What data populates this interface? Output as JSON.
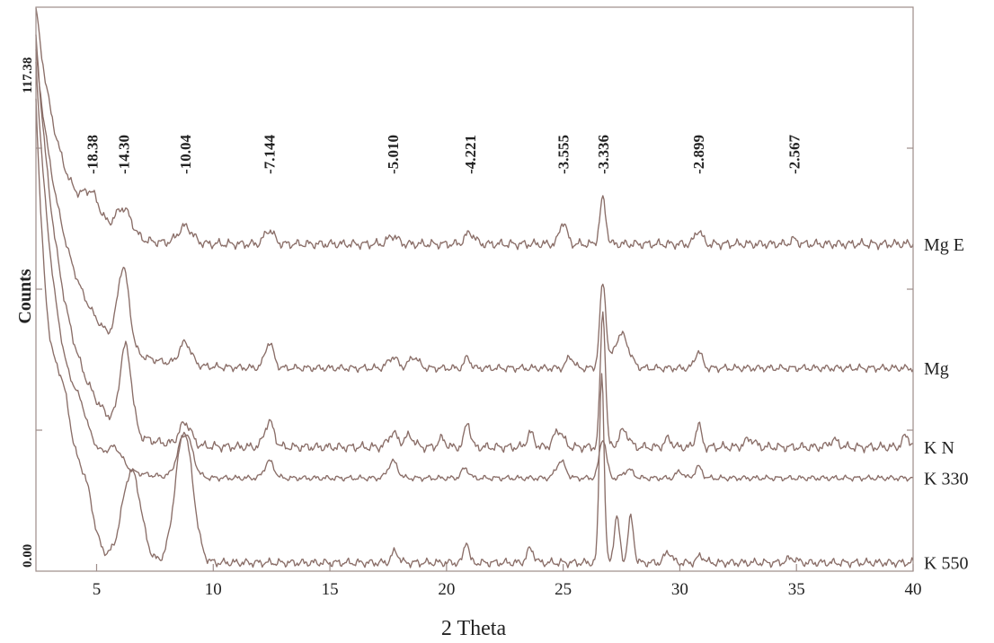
{
  "chart_data": {
    "type": "line",
    "title": "",
    "xlabel": "2 Theta",
    "ylabel": "Counts",
    "xlim": [
      2.4,
      40
    ],
    "x_ticks": [
      5,
      10,
      15,
      20,
      25,
      30,
      35,
      40
    ],
    "x_tick_labels": [
      "5",
      "10",
      "15",
      "20",
      "25",
      "30",
      "35",
      "40"
    ],
    "y_tick_labels": [
      "0.00",
      "117.38"
    ],
    "grid": false,
    "peak_annotations": [
      {
        "label": "-18.38",
        "x": 4.8
      },
      {
        "label": "-14.30",
        "x": 6.15
      },
      {
        "label": "-10.04",
        "x": 8.8
      },
      {
        "label": "-7.144",
        "x": 12.4
      },
      {
        "label": "-5.010",
        "x": 17.7
      },
      {
        "label": "-4.221",
        "x": 21.0
      },
      {
        "label": "-3.555",
        "x": 25.0
      },
      {
        "label": "-3.336",
        "x": 26.7
      },
      {
        "label": "-2.899",
        "x": 30.8
      },
      {
        "label": "-2.567",
        "x": 34.9
      }
    ],
    "series": [
      {
        "name": "Mg E",
        "baseline": 0.58,
        "start": 1.0,
        "decay": 1.1,
        "noise": 0.01,
        "peaks": [
          [
            4.8,
            0.045,
            0.35
          ],
          [
            6.15,
            0.05,
            0.35
          ],
          [
            8.8,
            0.03,
            0.3
          ],
          [
            12.4,
            0.025,
            0.2
          ],
          [
            17.7,
            0.015,
            0.2
          ],
          [
            21.0,
            0.02,
            0.2
          ],
          [
            25.0,
            0.04,
            0.15
          ],
          [
            26.7,
            0.08,
            0.13
          ],
          [
            30.8,
            0.025,
            0.15
          ],
          [
            34.9,
            0.008,
            0.15
          ]
        ]
      },
      {
        "name": "Mg",
        "baseline": 0.36,
        "start": 0.92,
        "decay": 1.4,
        "noise": 0.008,
        "peaks": [
          [
            6.15,
            0.14,
            0.25
          ],
          [
            8.8,
            0.04,
            0.25
          ],
          [
            12.4,
            0.045,
            0.18
          ],
          [
            17.7,
            0.02,
            0.2
          ],
          [
            18.6,
            0.02,
            0.2
          ],
          [
            20.9,
            0.02,
            0.12
          ],
          [
            25.3,
            0.02,
            0.15
          ],
          [
            26.7,
            0.15,
            0.13
          ],
          [
            27.5,
            0.06,
            0.3
          ],
          [
            30.8,
            0.03,
            0.15
          ]
        ]
      },
      {
        "name": "K N",
        "baseline": 0.22,
        "start": 0.95,
        "decay": 1.2,
        "noise": 0.01,
        "peaks": [
          [
            6.25,
            0.15,
            0.25
          ],
          [
            8.8,
            0.04,
            0.25
          ],
          [
            12.4,
            0.045,
            0.2
          ],
          [
            17.7,
            0.025,
            0.2
          ],
          [
            18.4,
            0.02,
            0.2
          ],
          [
            19.8,
            0.015,
            0.15
          ],
          [
            20.9,
            0.045,
            0.12
          ],
          [
            23.6,
            0.025,
            0.15
          ],
          [
            24.8,
            0.03,
            0.2
          ],
          [
            26.7,
            0.24,
            0.11
          ],
          [
            27.6,
            0.03,
            0.2
          ],
          [
            29.5,
            0.015,
            0.15
          ],
          [
            30.8,
            0.04,
            0.12
          ],
          [
            33.0,
            0.015,
            0.2
          ],
          [
            36.6,
            0.012,
            0.2
          ],
          [
            39.7,
            0.02,
            0.15
          ]
        ]
      },
      {
        "name": "K 330",
        "baseline": 0.165,
        "start": 0.9,
        "decay": 1.0,
        "noise": 0.006,
        "peaks": [
          [
            4.3,
            0.03,
            0.3
          ],
          [
            5.8,
            0.03,
            0.3
          ],
          [
            8.8,
            0.08,
            0.3
          ],
          [
            12.4,
            0.03,
            0.2
          ],
          [
            17.7,
            0.03,
            0.2
          ],
          [
            20.8,
            0.018,
            0.15
          ],
          [
            24.9,
            0.03,
            0.2
          ],
          [
            26.7,
            0.07,
            0.15
          ],
          [
            27.8,
            0.015,
            0.2
          ],
          [
            30.8,
            0.02,
            0.15
          ],
          [
            30.0,
            0.012,
            0.15
          ]
        ]
      },
      {
        "name": "K 550",
        "baseline": 0.015,
        "start": 0.84,
        "decay": 0.7,
        "noise": 0.009,
        "peaks": [
          [
            3.6,
            0.16,
            0.4
          ],
          [
            4.5,
            0.1,
            0.35
          ],
          [
            6.5,
            0.16,
            0.4
          ],
          [
            8.75,
            0.23,
            0.38
          ],
          [
            17.8,
            0.02,
            0.15
          ],
          [
            20.85,
            0.04,
            0.1
          ],
          [
            23.6,
            0.025,
            0.15
          ],
          [
            26.65,
            0.34,
            0.1
          ],
          [
            27.3,
            0.08,
            0.12
          ],
          [
            27.9,
            0.08,
            0.12
          ],
          [
            29.5,
            0.02,
            0.15
          ],
          [
            30.9,
            0.012,
            0.15
          ],
          [
            34.8,
            0.008,
            0.2
          ]
        ]
      }
    ]
  }
}
